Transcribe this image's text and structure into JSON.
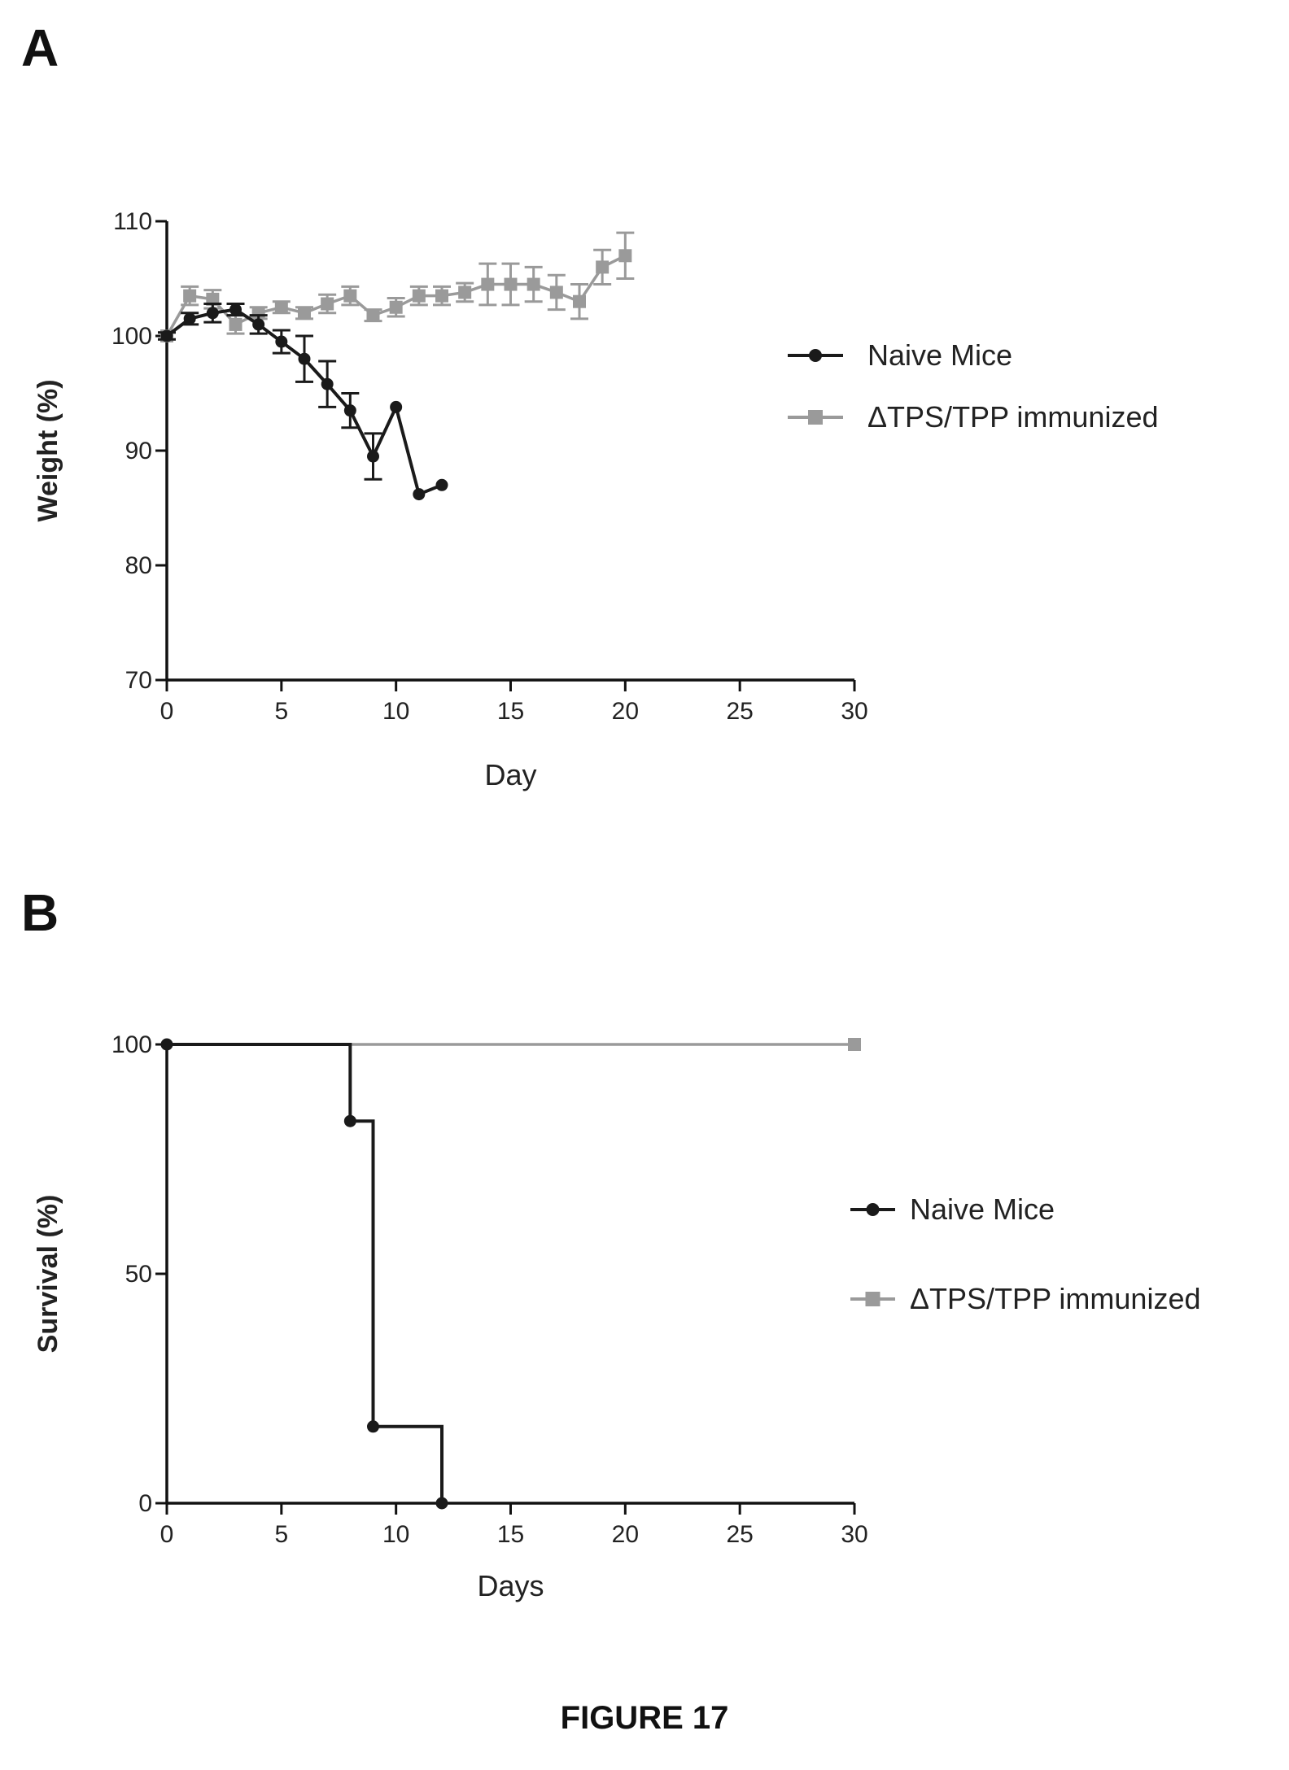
{
  "figure_caption": "FIGURE 17",
  "colors": {
    "naive": "#1a1a1a",
    "immunized": "#9a9a9a",
    "axis": "#111111"
  },
  "chart_data": [
    {
      "panel": "A",
      "type": "line",
      "xlabel": "Day",
      "ylabel": "Weight (%)",
      "xlim": [
        0,
        30
      ],
      "ylim": [
        70,
        110
      ],
      "xticks": [
        0,
        5,
        10,
        15,
        20,
        25,
        30
      ],
      "yticks": [
        70,
        80,
        90,
        100,
        110
      ],
      "grid": false,
      "legend_position": "right",
      "series": [
        {
          "name": "Naive Mice",
          "marker": "circle",
          "x": [
            0,
            1,
            2,
            3,
            4,
            5,
            6,
            7,
            8,
            9,
            10,
            11,
            12
          ],
          "y": [
            100,
            101.5,
            102,
            102.3,
            101,
            99.5,
            98,
            95.8,
            93.5,
            89.5,
            93.8,
            86.2,
            87
          ],
          "err": [
            0.3,
            0.5,
            0.8,
            0.5,
            0.8,
            1.0,
            2.0,
            2.0,
            1.5,
            2.0,
            0,
            0,
            0
          ]
        },
        {
          "name": "ΔTPS/TPP immunized",
          "marker": "square",
          "x": [
            0,
            1,
            2,
            3,
            4,
            5,
            6,
            7,
            8,
            9,
            10,
            11,
            12,
            13,
            14,
            15,
            16,
            17,
            18,
            19,
            20
          ],
          "y": [
            100,
            103.5,
            103.2,
            101,
            102,
            102.5,
            102,
            102.8,
            103.5,
            101.8,
            102.5,
            103.5,
            103.5,
            103.8,
            104.5,
            104.5,
            104.5,
            103.8,
            103,
            106,
            107
          ],
          "err": [
            0.3,
            0.8,
            0.8,
            0.8,
            0.5,
            0.5,
            0.5,
            0.8,
            0.8,
            0.5,
            0.8,
            0.8,
            0.8,
            0.8,
            1.8,
            1.8,
            1.5,
            1.5,
            1.5,
            1.5,
            2.0
          ]
        }
      ]
    },
    {
      "panel": "B",
      "type": "line",
      "xlabel": "Days",
      "ylabel": "Survival (%)",
      "xlim": [
        0,
        30
      ],
      "ylim": [
        0,
        100
      ],
      "xticks": [
        0,
        5,
        10,
        15,
        20,
        25,
        30
      ],
      "yticks": [
        0,
        50,
        100
      ],
      "grid": false,
      "legend_position": "right",
      "series": [
        {
          "name": "Naive Mice",
          "marker": "circle",
          "step": true,
          "x": [
            0,
            8,
            9,
            12
          ],
          "y": [
            100,
            83.3,
            16.7,
            0
          ]
        },
        {
          "name": "ΔTPS/TPP immunized",
          "marker": "square",
          "step": true,
          "x": [
            0,
            30
          ],
          "y": [
            100,
            100
          ]
        }
      ]
    }
  ]
}
